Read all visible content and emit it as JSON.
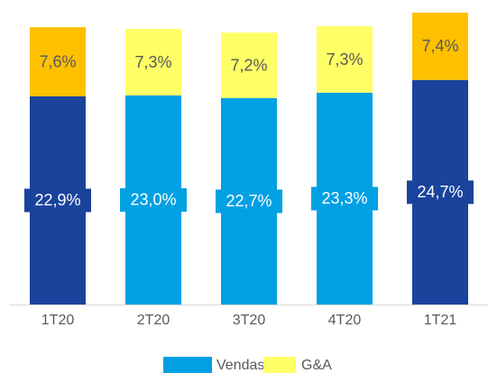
{
  "chart_data": {
    "type": "stacked_bar",
    "categories": [
      "1T20",
      "2T20",
      "3T20",
      "4T20",
      "1T21"
    ],
    "series": [
      {
        "name": "Vendas",
        "color": "#00a0e3",
        "colors": [
          "#1a439c",
          "#00a0e3",
          "#00a0e3",
          "#00a0e3",
          "#1a439c"
        ],
        "values": [
          22.9,
          23.0,
          22.7,
          23.3,
          24.7
        ],
        "value_labels": [
          "22,9%",
          "23,0%",
          "22,7%",
          "23,3%",
          "24,7%"
        ]
      },
      {
        "name": "G&A",
        "color": "#ffff66",
        "colors": [
          "#ffc000",
          "#ffff66",
          "#ffff66",
          "#ffff66",
          "#ffc000"
        ],
        "values": [
          7.6,
          7.3,
          7.2,
          7.3,
          7.4
        ],
        "value_labels": [
          "7,6%",
          "7,3%",
          "7,2%",
          "7,3%",
          "7,4%"
        ]
      }
    ],
    "ylim": [
      0,
      32.5
    ],
    "legend": "bottom"
  }
}
